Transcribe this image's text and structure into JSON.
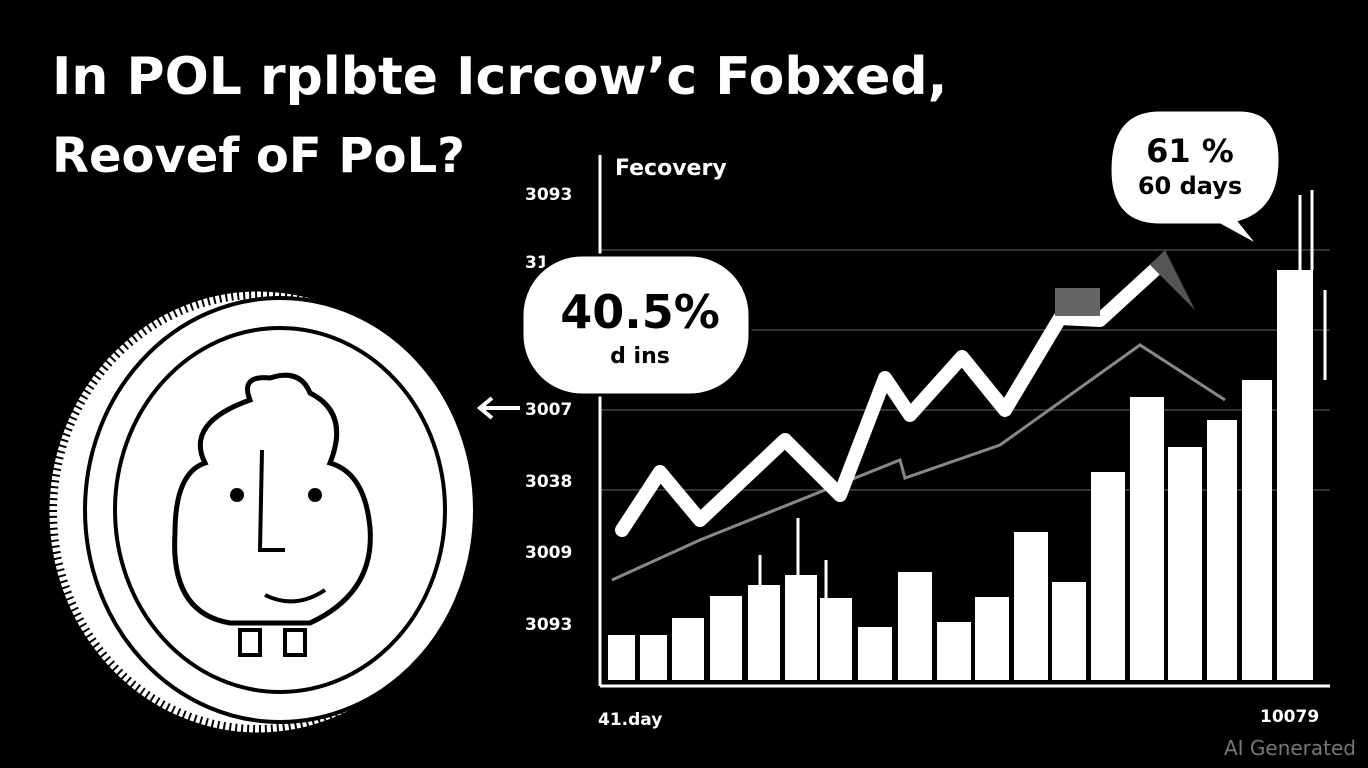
{
  "header": {
    "title_line1": "In POL rplbte Icrcow’c Fobxed,",
    "title_line2": "Reovef oF PoL?"
  },
  "chart": {
    "label": "Fecovery",
    "y_labels": [
      "3093",
      "31",
      "3007",
      "3038",
      "3009",
      "3093"
    ],
    "x_labels": [
      "41.day",
      "10079"
    ]
  },
  "callouts": [
    {
      "big": "40.5%",
      "small": "d ins"
    },
    {
      "big": "61 %",
      "small": "60 days"
    }
  ],
  "watermark": "AI Generated"
}
